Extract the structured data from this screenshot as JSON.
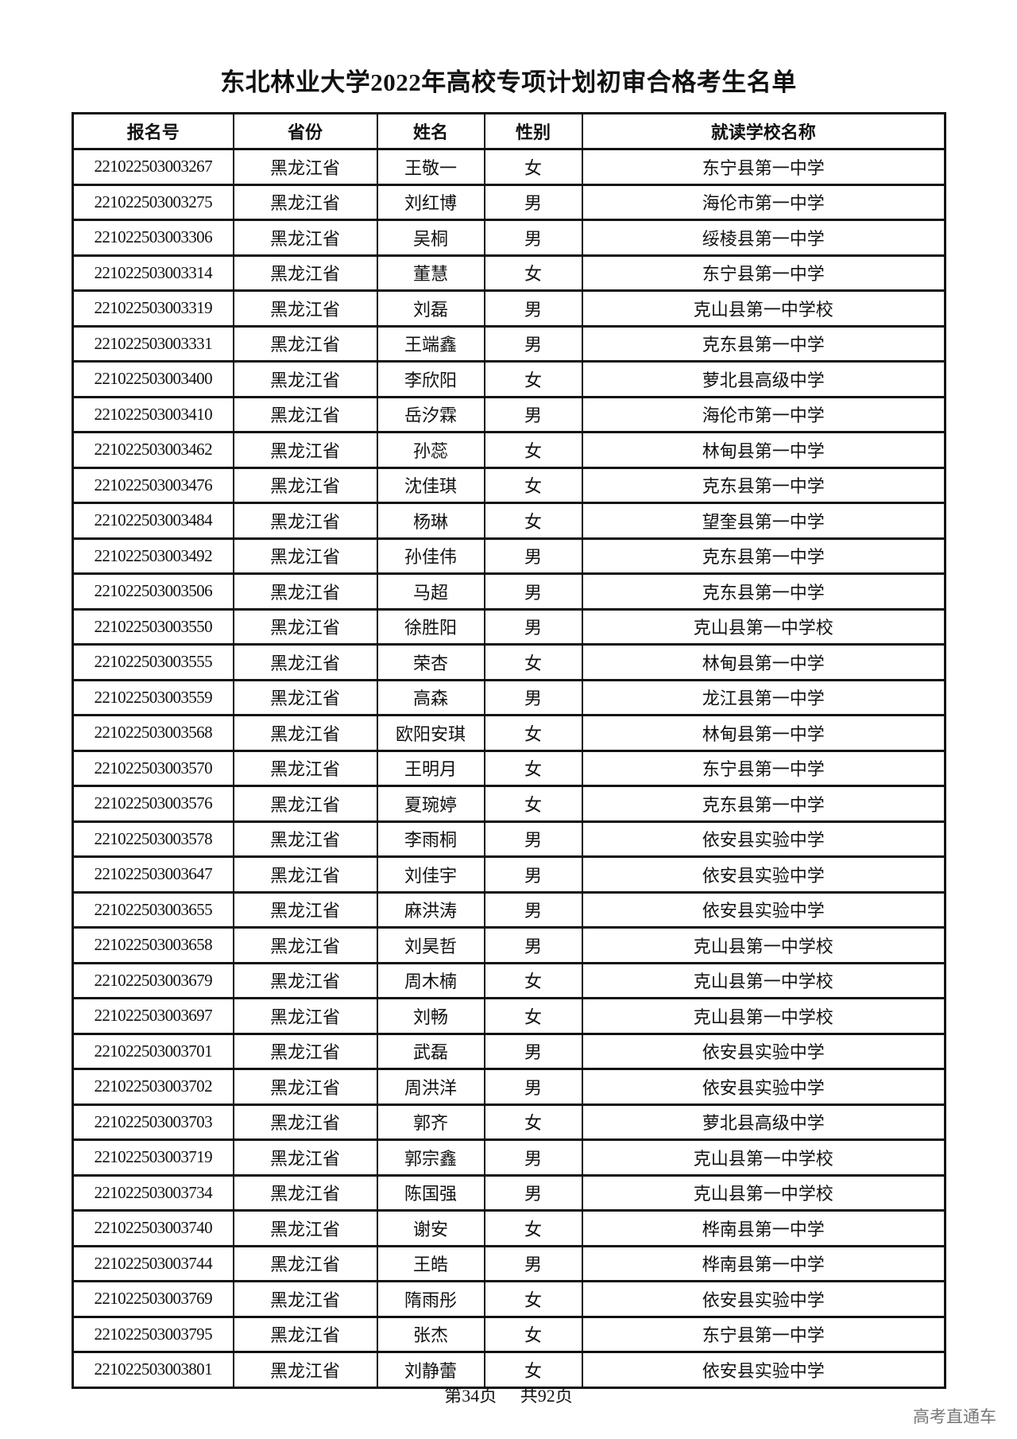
{
  "title": "东北林业大学2022年高校专项计划初审合格考生名单",
  "table": {
    "headers": [
      "报名号",
      "省份",
      "姓名",
      "性别",
      "就读学校名称"
    ],
    "rows": [
      [
        "221022503003267",
        "黑龙江省",
        "王敬一",
        "女",
        "东宁县第一中学"
      ],
      [
        "221022503003275",
        "黑龙江省",
        "刘红博",
        "男",
        "海伦市第一中学"
      ],
      [
        "221022503003306",
        "黑龙江省",
        "吴桐",
        "男",
        "绥棱县第一中学"
      ],
      [
        "221022503003314",
        "黑龙江省",
        "董慧",
        "女",
        "东宁县第一中学"
      ],
      [
        "221022503003319",
        "黑龙江省",
        "刘磊",
        "男",
        "克山县第一中学校"
      ],
      [
        "221022503003331",
        "黑龙江省",
        "王端鑫",
        "男",
        "克东县第一中学"
      ],
      [
        "221022503003400",
        "黑龙江省",
        "李欣阳",
        "女",
        "萝北县高级中学"
      ],
      [
        "221022503003410",
        "黑龙江省",
        "岳汐霖",
        "男",
        "海伦市第一中学"
      ],
      [
        "221022503003462",
        "黑龙江省",
        "孙蕊",
        "女",
        "林甸县第一中学"
      ],
      [
        "221022503003476",
        "黑龙江省",
        "沈佳琪",
        "女",
        "克东县第一中学"
      ],
      [
        "221022503003484",
        "黑龙江省",
        "杨琳",
        "女",
        "望奎县第一中学"
      ],
      [
        "221022503003492",
        "黑龙江省",
        "孙佳伟",
        "男",
        "克东县第一中学"
      ],
      [
        "221022503003506",
        "黑龙江省",
        "马超",
        "男",
        "克东县第一中学"
      ],
      [
        "221022503003550",
        "黑龙江省",
        "徐胜阳",
        "男",
        "克山县第一中学校"
      ],
      [
        "221022503003555",
        "黑龙江省",
        "荣杏",
        "女",
        "林甸县第一中学"
      ],
      [
        "221022503003559",
        "黑龙江省",
        "高森",
        "男",
        "龙江县第一中学"
      ],
      [
        "221022503003568",
        "黑龙江省",
        "欧阳安琪",
        "女",
        "林甸县第一中学"
      ],
      [
        "221022503003570",
        "黑龙江省",
        "王明月",
        "女",
        "东宁县第一中学"
      ],
      [
        "221022503003576",
        "黑龙江省",
        "夏琬婷",
        "女",
        "克东县第一中学"
      ],
      [
        "221022503003578",
        "黑龙江省",
        "李雨桐",
        "男",
        "依安县实验中学"
      ],
      [
        "221022503003647",
        "黑龙江省",
        "刘佳宇",
        "男",
        "依安县实验中学"
      ],
      [
        "221022503003655",
        "黑龙江省",
        "麻洪涛",
        "男",
        "依安县实验中学"
      ],
      [
        "221022503003658",
        "黑龙江省",
        "刘昊哲",
        "男",
        "克山县第一中学校"
      ],
      [
        "221022503003679",
        "黑龙江省",
        "周木楠",
        "女",
        "克山县第一中学校"
      ],
      [
        "221022503003697",
        "黑龙江省",
        "刘畅",
        "女",
        "克山县第一中学校"
      ],
      [
        "221022503003701",
        "黑龙江省",
        "武磊",
        "男",
        "依安县实验中学"
      ],
      [
        "221022503003702",
        "黑龙江省",
        "周洪洋",
        "男",
        "依安县实验中学"
      ],
      [
        "221022503003703",
        "黑龙江省",
        "郭齐",
        "女",
        "萝北县高级中学"
      ],
      [
        "221022503003719",
        "黑龙江省",
        "郭宗鑫",
        "男",
        "克山县第一中学校"
      ],
      [
        "221022503003734",
        "黑龙江省",
        "陈国强",
        "男",
        "克山县第一中学校"
      ],
      [
        "221022503003740",
        "黑龙江省",
        "谢安",
        "女",
        "桦南县第一中学"
      ],
      [
        "221022503003744",
        "黑龙江省",
        "王皓",
        "男",
        "桦南县第一中学"
      ],
      [
        "221022503003769",
        "黑龙江省",
        "隋雨彤",
        "女",
        "依安县实验中学"
      ],
      [
        "221022503003795",
        "黑龙江省",
        "张杰",
        "女",
        "东宁县第一中学"
      ],
      [
        "221022503003801",
        "黑龙江省",
        "刘静蕾",
        "女",
        "依安县实验中学"
      ]
    ]
  },
  "footer": {
    "page": "第34页",
    "total": "共92页"
  },
  "watermark": "高考直通车"
}
